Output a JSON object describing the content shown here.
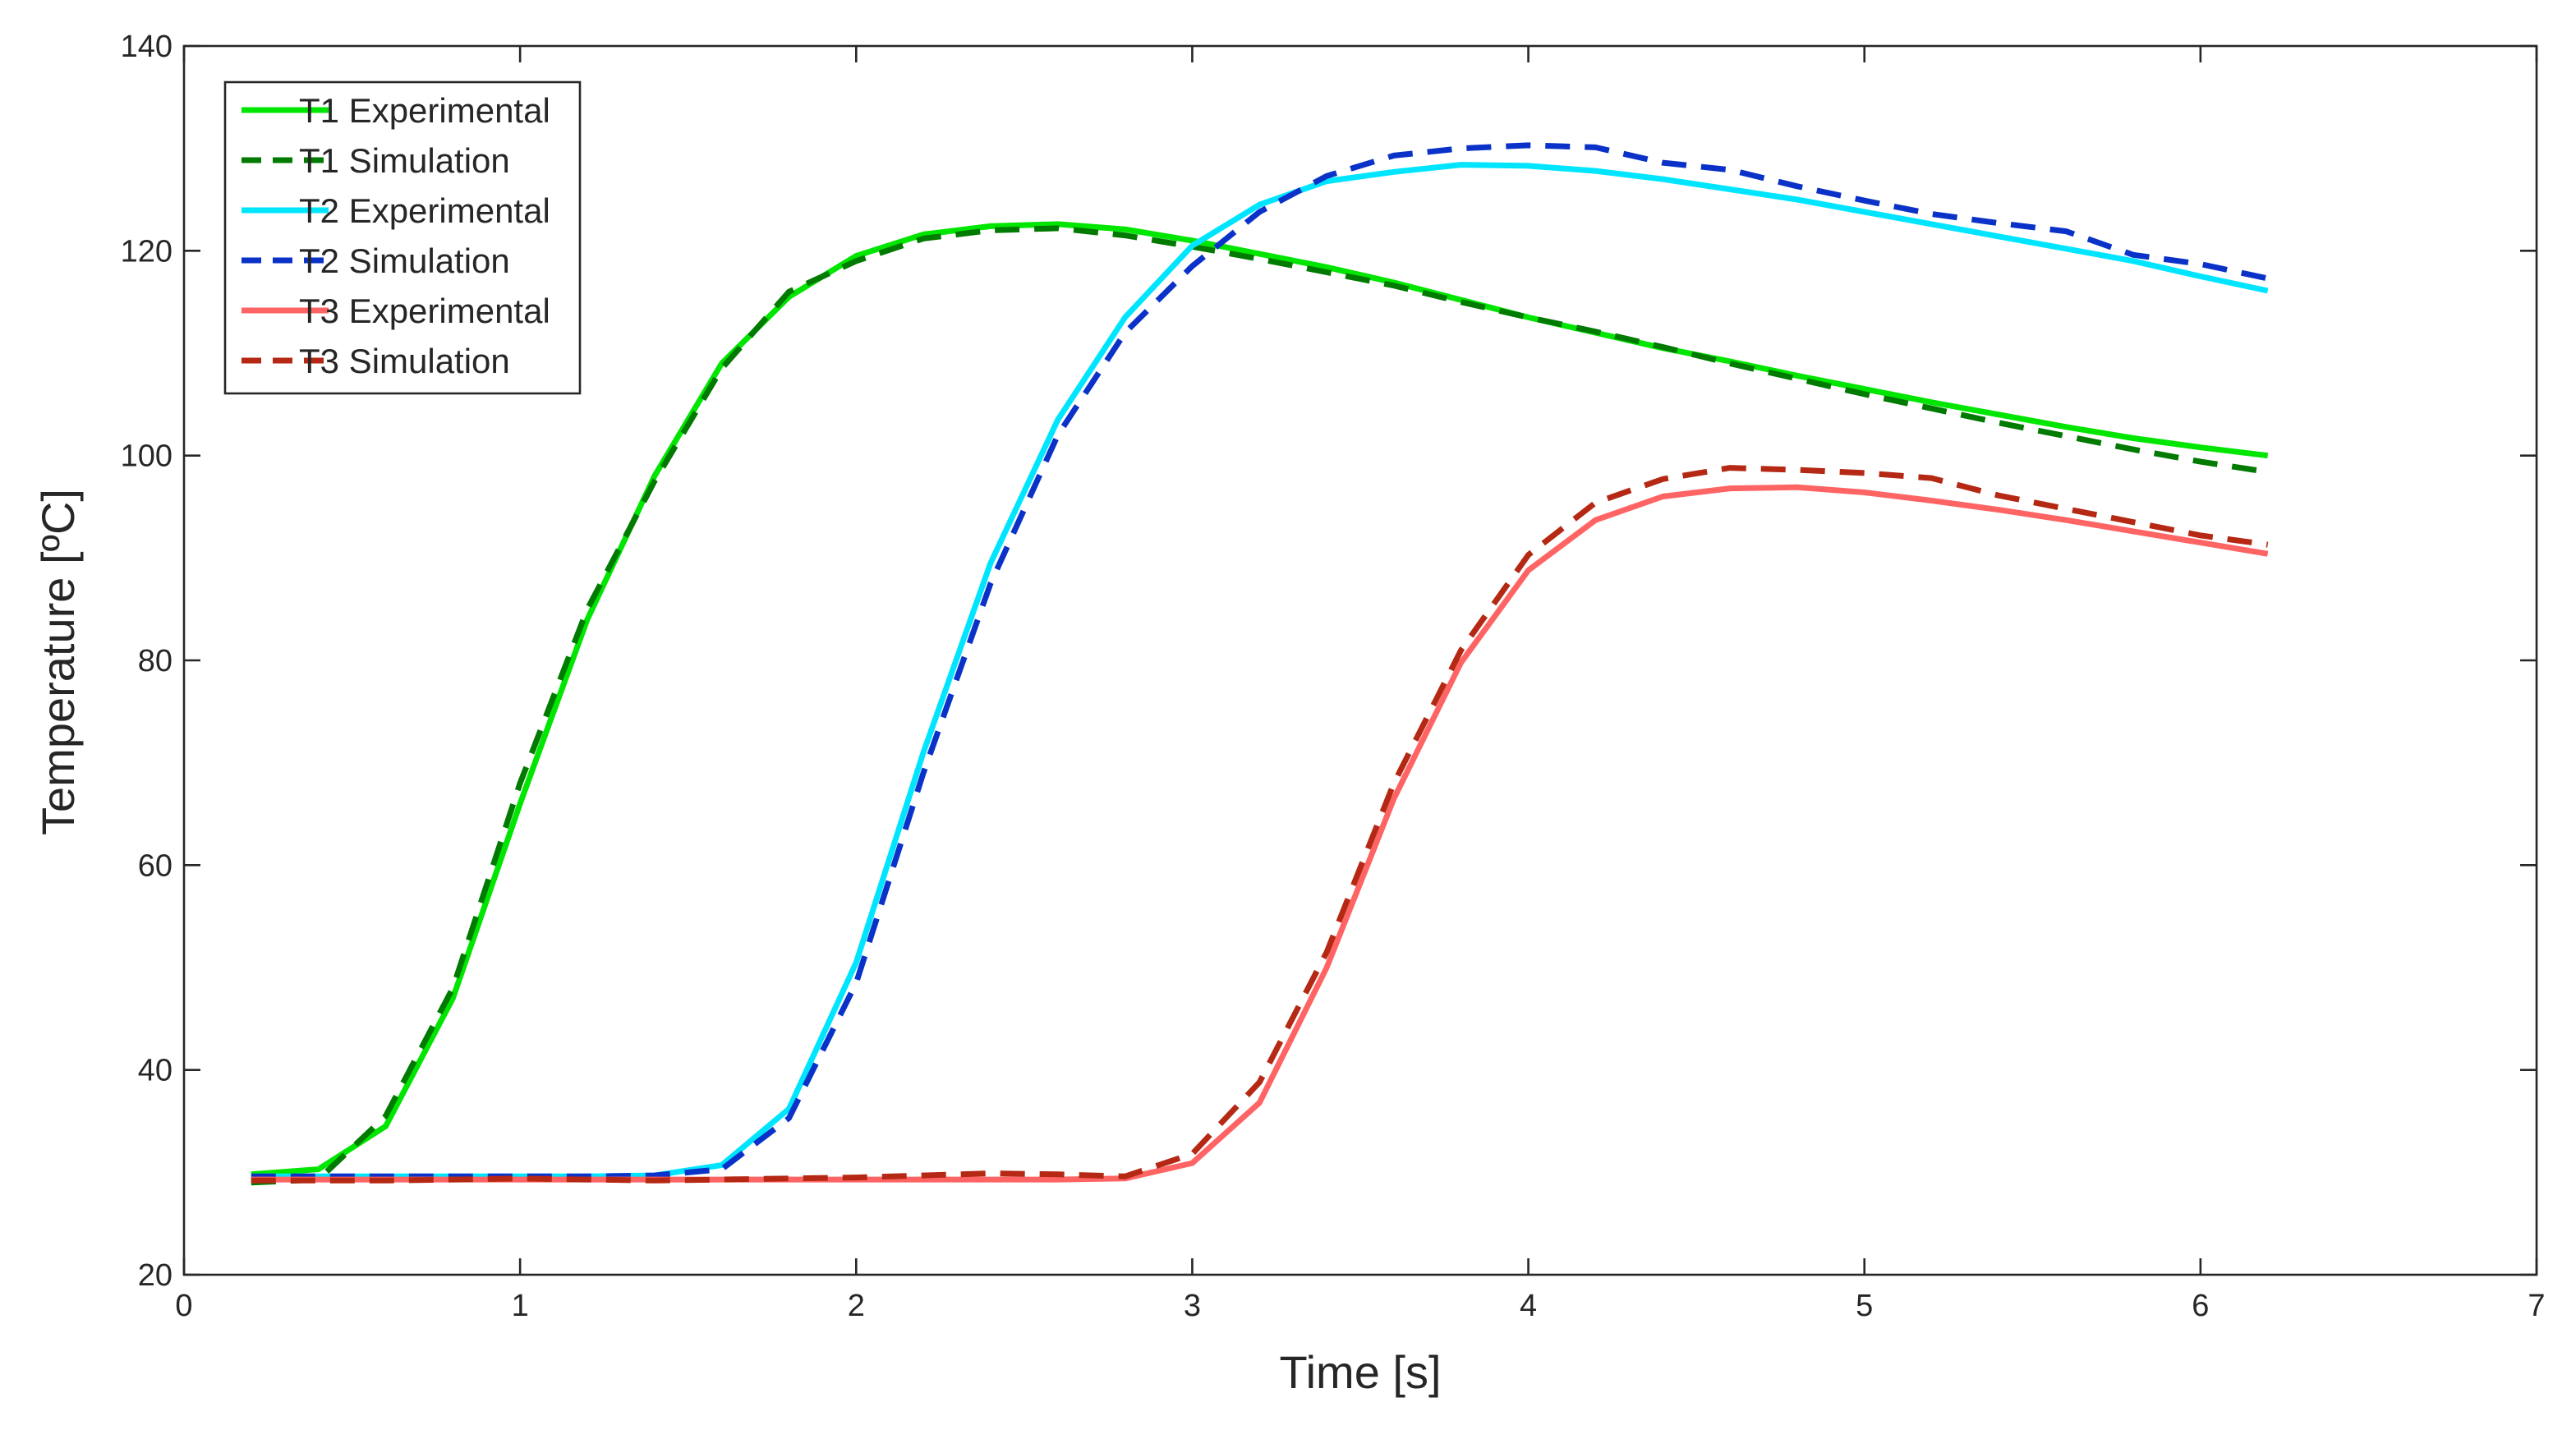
{
  "chart_data": {
    "type": "line",
    "title": "",
    "xlabel": "Time [s]",
    "ylabel": "Temperature [ºC]",
    "xlim": [
      0,
      7
    ],
    "ylim": [
      20,
      140
    ],
    "xticks": [
      0,
      1,
      2,
      3,
      4,
      5,
      6,
      7
    ],
    "yticks": [
      20,
      40,
      60,
      80,
      100,
      120,
      140
    ],
    "xtick_labels": [
      "0",
      "1",
      "2",
      "3",
      "4",
      "5",
      "6",
      "7"
    ],
    "ytick_labels": [
      "20",
      "40",
      "60",
      "80",
      "100",
      "120",
      "140"
    ],
    "grid": false,
    "legend_position": "top-left",
    "x": [
      0.2,
      0.4,
      0.6,
      0.8,
      1.0,
      1.2,
      1.4,
      1.6,
      1.8,
      2.0,
      2.2,
      2.4,
      2.6,
      2.8,
      3.0,
      3.2,
      3.4,
      3.6,
      3.8,
      4.0,
      4.2,
      4.4,
      4.6,
      4.8,
      5.0,
      5.2,
      5.4,
      5.6,
      5.8,
      6.0,
      6.2
    ],
    "series": [
      {
        "name": "T1 Experimental",
        "color": "#00e600",
        "dash": "solid",
        "values": [
          29.8,
          30.3,
          34.5,
          47,
          66,
          84,
          98,
          109,
          115.5,
          119.5,
          121.6,
          122.4,
          122.6,
          122.1,
          121,
          119.7,
          118.4,
          116.9,
          115.2,
          113.5,
          112,
          110.5,
          109.2,
          107.8,
          106.5,
          105.2,
          104,
          102.8,
          101.7,
          100.8,
          100
        ]
      },
      {
        "name": "T1 Simulation",
        "color": "#007a00",
        "dash": "dashed",
        "values": [
          29,
          29.3,
          35.5,
          48,
          68,
          85,
          97.5,
          108.5,
          116,
          119,
          121.2,
          122,
          122.2,
          121.5,
          120.4,
          119.2,
          117.9,
          116.6,
          115,
          113.5,
          112.1,
          110.6,
          109,
          107.5,
          106,
          104.6,
          103.2,
          101.9,
          100.6,
          99.4,
          98.4
        ]
      },
      {
        "name": "T2 Experimental",
        "color": "#00e5ff",
        "dash": "solid",
        "values": [
          29.6,
          29.6,
          29.6,
          29.6,
          29.6,
          29.6,
          29.7,
          30.7,
          36.2,
          50.5,
          71,
          89.5,
          103.5,
          113.5,
          120.5,
          124.5,
          126.8,
          127.7,
          128.4,
          128.3,
          127.8,
          127,
          126,
          125,
          123.8,
          122.6,
          121.4,
          120.2,
          119,
          117.5,
          116.1
        ]
      },
      {
        "name": "T2 Simulation",
        "color": "#0a32c8",
        "dash": "dashed",
        "values": [
          29.6,
          29.6,
          29.6,
          29.6,
          29.6,
          29.6,
          29.7,
          30.3,
          35.3,
          48.5,
          69,
          87.5,
          102,
          112,
          118.5,
          123.8,
          127.3,
          129.3,
          130,
          130.3,
          130.1,
          128.6,
          127.9,
          126.3,
          124.9,
          123.6,
          122.7,
          121.9,
          119.6,
          118.7,
          117.3
        ]
      },
      {
        "name": "T3 Experimental",
        "color": "#ff6464",
        "dash": "solid",
        "values": [
          29.3,
          29.3,
          29.3,
          29.3,
          29.3,
          29.3,
          29.3,
          29.3,
          29.3,
          29.3,
          29.3,
          29.3,
          29.3,
          29.4,
          30.9,
          36.8,
          50,
          66.5,
          79.8,
          88.8,
          93.7,
          96,
          96.8,
          96.9,
          96.4,
          95.6,
          94.7,
          93.7,
          92.6,
          91.5,
          90.4
        ]
      },
      {
        "name": "T3 Simulation",
        "color": "#b42814",
        "dash": "dashed",
        "values": [
          29.2,
          29.2,
          29.2,
          29.3,
          29.4,
          29.3,
          29.2,
          29.3,
          29.4,
          29.5,
          29.7,
          29.9,
          29.8,
          29.6,
          31.8,
          38.8,
          51.5,
          68,
          81,
          90.3,
          95.4,
          97.7,
          98.8,
          98.6,
          98.3,
          97.8,
          96.1,
          94.8,
          93.5,
          92.2,
          91.3
        ]
      }
    ]
  }
}
